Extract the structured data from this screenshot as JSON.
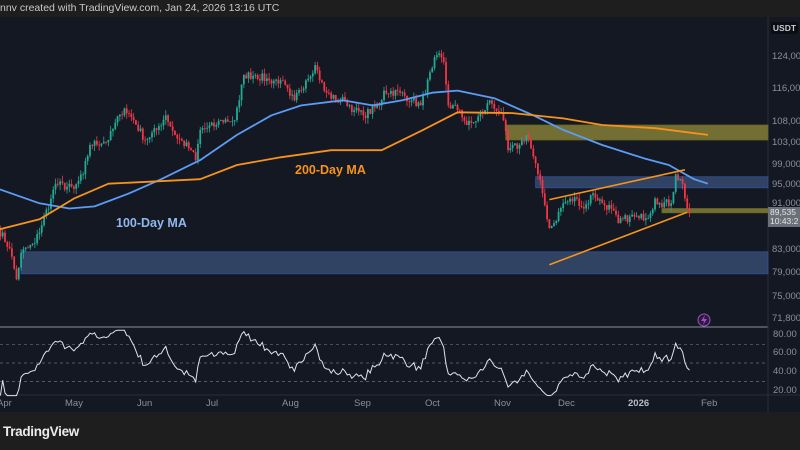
{
  "header": {
    "attribution": "nnv created with TradingView.com, Jan 24, 2026 13:16 UTC"
  },
  "footer": {
    "logo_text": "TradingView"
  },
  "price_axis": {
    "currency": "USDT",
    "scale": "log",
    "ticks": [
      "124,000",
      "116,000",
      "108,000",
      "103,000",
      "99,000",
      "95,000",
      "91,000",
      "83,000",
      "79,000",
      "75,000",
      "71,800"
    ],
    "last_price": "89,535",
    "countdown": "10:43:2"
  },
  "rsi_axis": {
    "ticks": [
      "80.00",
      "60.00",
      "40.00",
      "20.00"
    ],
    "levels": [
      70,
      50,
      30
    ]
  },
  "time_axis": {
    "ticks": [
      "Apr",
      "May",
      "Jun",
      "Jul",
      "Aug",
      "Sep",
      "Oct",
      "Nov",
      "Dec",
      "2026",
      "Feb"
    ]
  },
  "annotations": {
    "ma200_label": "200-Day MA",
    "ma100_label": "100-Day MA"
  },
  "colors": {
    "up": "#22ab94",
    "down": "#f23645",
    "ma100": "#5b9cf6",
    "ma200": "#f7931a",
    "zone_blue": "#3b5278",
    "zone_yellow": "#8a8438",
    "rsi": "#dfe3ea",
    "background": "#141823",
    "alert_icon": "#9b4dca"
  },
  "chart_data": {
    "type": "candlestick",
    "symbol_quote": "USDT",
    "y_scale": "log",
    "ylim": [
      71800,
      127000
    ],
    "close_path": [
      [
        "2025-03-29",
        86800
      ],
      [
        "2025-04-03",
        83200
      ],
      [
        "2025-04-06",
        78000
      ],
      [
        "2025-04-08",
        82400
      ],
      [
        "2025-04-14",
        84100
      ],
      [
        "2025-04-21",
        92300
      ],
      [
        "2025-04-23",
        95200
      ],
      [
        "2025-05-01",
        94200
      ],
      [
        "2025-05-05",
        97100
      ],
      [
        "2025-05-08",
        103200
      ],
      [
        "2025-05-16",
        104300
      ],
      [
        "2025-05-21",
        110000
      ],
      [
        "2025-05-23",
        111400
      ],
      [
        "2025-05-27",
        108700
      ],
      [
        "2025-06-01",
        104300
      ],
      [
        "2025-06-06",
        106500
      ],
      [
        "2025-06-10",
        109800
      ],
      [
        "2025-06-14",
        105400
      ],
      [
        "2025-06-21",
        102100
      ],
      [
        "2025-06-23",
        100000
      ],
      [
        "2025-06-25",
        106500
      ],
      [
        "2025-07-02",
        107600
      ],
      [
        "2025-07-04",
        108700
      ],
      [
        "2025-07-10",
        108700
      ],
      [
        "2025-07-12",
        113300
      ],
      [
        "2025-07-14",
        119400
      ],
      [
        "2025-07-19",
        119400
      ],
      [
        "2025-07-25",
        118100
      ],
      [
        "2025-07-30",
        118100
      ],
      [
        "2025-08-03",
        114400
      ],
      [
        "2025-08-05",
        113300
      ],
      [
        "2025-08-10",
        118100
      ],
      [
        "2025-08-14",
        121900
      ],
      [
        "2025-08-18",
        115600
      ],
      [
        "2025-08-23",
        113300
      ],
      [
        "2025-08-27",
        113300
      ],
      [
        "2025-08-31",
        111000
      ],
      [
        "2025-09-04",
        109800
      ],
      [
        "2025-09-11",
        112100
      ],
      [
        "2025-09-13",
        115600
      ],
      [
        "2025-09-20",
        115100
      ],
      [
        "2025-09-25",
        113300
      ],
      [
        "2025-09-29",
        112100
      ],
      [
        "2025-10-04",
        121200
      ],
      [
        "2025-10-06",
        124500
      ],
      [
        "2025-10-09",
        122700
      ],
      [
        "2025-10-11",
        112100
      ],
      [
        "2025-10-16",
        111000
      ],
      [
        "2025-10-19",
        107600
      ],
      [
        "2025-10-22",
        108200
      ],
      [
        "2025-10-27",
        111000
      ],
      [
        "2025-10-29",
        113300
      ],
      [
        "2025-11-02",
        110500
      ],
      [
        "2025-11-04",
        108700
      ],
      [
        "2025-11-06",
        102100
      ],
      [
        "2025-11-11",
        103200
      ],
      [
        "2025-11-14",
        105400
      ],
      [
        "2025-11-15",
        104300
      ],
      [
        "2025-11-19",
        97100
      ],
      [
        "2025-11-21",
        93300
      ],
      [
        "2025-11-24",
        86800
      ],
      [
        "2025-11-26",
        87700
      ],
      [
        "2025-11-30",
        91400
      ],
      [
        "2025-12-06",
        92300
      ],
      [
        "2025-12-09",
        90400
      ],
      [
        "2025-12-13",
        93300
      ],
      [
        "2025-12-17",
        91400
      ],
      [
        "2025-12-21",
        90400
      ],
      [
        "2025-12-24",
        87700
      ],
      [
        "2025-12-29",
        88900
      ],
      [
        "2026-01-02",
        88600
      ],
      [
        "2026-01-07",
        89500
      ],
      [
        "2026-01-09",
        92300
      ],
      [
        "2026-01-11",
        91400
      ],
      [
        "2026-01-16",
        91400
      ],
      [
        "2026-01-18",
        97100
      ],
      [
        "2026-01-21",
        95200
      ],
      [
        "2026-01-23",
        90400
      ],
      [
        "2026-01-24",
        89535
      ]
    ],
    "series": [
      {
        "name": "100-Day MA",
        "values": [
          [
            "2025-03-29",
            94200
          ],
          [
            "2025-04-16",
            91400
          ],
          [
            "2025-04-29",
            90400
          ],
          [
            "2025-05-10",
            90800
          ],
          [
            "2025-05-25",
            93300
          ],
          [
            "2025-06-08",
            96100
          ],
          [
            "2025-06-25",
            100000
          ],
          [
            "2025-07-11",
            105400
          ],
          [
            "2025-07-26",
            109800
          ],
          [
            "2025-08-08",
            112100
          ],
          [
            "2025-08-26",
            113300
          ],
          [
            "2025-09-08",
            112100
          ],
          [
            "2025-09-21",
            113300
          ],
          [
            "2025-10-04",
            115100
          ],
          [
            "2025-10-15",
            115600
          ],
          [
            "2025-10-31",
            113800
          ],
          [
            "2025-11-17",
            109800
          ],
          [
            "2025-11-30",
            106500
          ],
          [
            "2025-12-17",
            103200
          ],
          [
            "2026-01-04",
            100400
          ],
          [
            "2026-01-15",
            99000
          ],
          [
            "2026-01-26",
            96100
          ],
          [
            "2026-02-01",
            95200
          ]
        ]
      },
      {
        "name": "200-Day MA",
        "values": [
          [
            "2025-03-29",
            86500
          ],
          [
            "2025-04-16",
            88400
          ],
          [
            "2025-05-01",
            92300
          ],
          [
            "2025-05-16",
            95200
          ],
          [
            "2025-06-03",
            95600
          ],
          [
            "2025-06-25",
            96100
          ],
          [
            "2025-07-11",
            99000
          ],
          [
            "2025-07-30",
            100600
          ],
          [
            "2025-08-21",
            102100
          ],
          [
            "2025-09-12",
            102100
          ],
          [
            "2025-09-30",
            106500
          ],
          [
            "2025-10-15",
            110500
          ],
          [
            "2025-11-08",
            110300
          ],
          [
            "2025-11-30",
            109100
          ],
          [
            "2025-12-17",
            107600
          ],
          [
            "2026-01-09",
            106900
          ],
          [
            "2026-02-01",
            105400
          ]
        ]
      }
    ],
    "zones": [
      {
        "color": "blue",
        "from": "2025-04-08",
        "low": 78900,
        "high": 82600
      },
      {
        "color": "blue",
        "from": "2025-11-18",
        "low": 94400,
        "high": 96600
      },
      {
        "color": "yellow",
        "from": "2025-11-05",
        "low": 104300,
        "high": 107600
      },
      {
        "color": "yellow",
        "from": "2026-01-12",
        "low": 89600,
        "high": 90400
      }
    ],
    "trendlines": [
      {
        "from": [
          "2025-11-24",
          92100
        ],
        "to": [
          "2026-01-22",
          98000
        ]
      },
      {
        "from": [
          "2025-11-24",
          80400
        ],
        "to": [
          "2026-01-23",
          89700
        ]
      }
    ],
    "indicator": {
      "name": "RSI",
      "ylim": [
        13,
        87
      ]
    }
  }
}
